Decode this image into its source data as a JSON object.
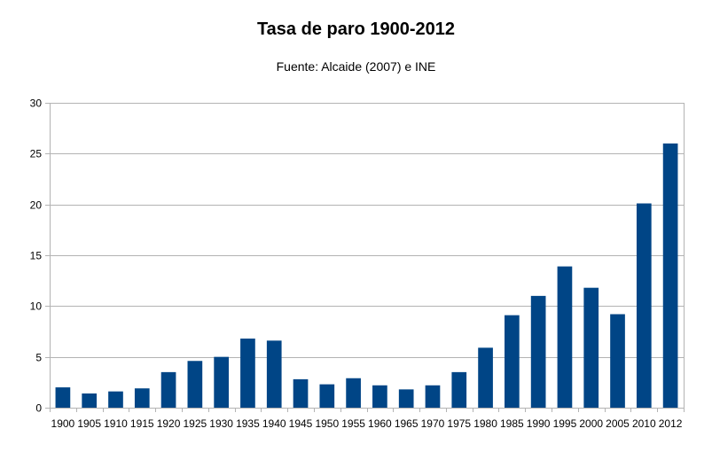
{
  "chart_data": {
    "type": "bar",
    "title": "Tasa de paro 1900-2012",
    "subtitle": "Fuente: Alcaide (2007) e INE",
    "xlabel": "",
    "ylabel": "",
    "categories": [
      "1900",
      "1905",
      "1910",
      "1915",
      "1920",
      "1925",
      "1930",
      "1935",
      "1940",
      "1945",
      "1950",
      "1955",
      "1960",
      "1965",
      "1970",
      "1975",
      "1980",
      "1985",
      "1990",
      "1995",
      "2000",
      "2005",
      "2010",
      "2012"
    ],
    "values": [
      2.0,
      1.4,
      1.6,
      1.9,
      3.5,
      4.6,
      5.0,
      6.8,
      6.6,
      2.8,
      2.3,
      2.9,
      2.2,
      1.8,
      2.2,
      3.5,
      5.9,
      9.1,
      11.0,
      13.9,
      11.8,
      9.2,
      20.1,
      26.0
    ],
    "ylim": [
      0,
      30
    ],
    "yticks": [
      0,
      5,
      10,
      15,
      20,
      25,
      30
    ],
    "grid": true,
    "legend": "none",
    "bar_color": "#004586",
    "grid_color": "#b3b3b3"
  }
}
